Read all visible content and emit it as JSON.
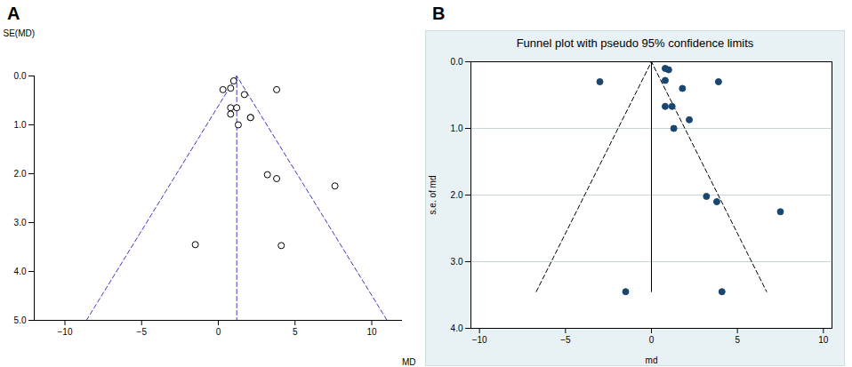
{
  "chart_data": [
    {
      "type": "scatter",
      "panel": "A",
      "x_label": "MD",
      "y_label": "SE(MD)",
      "xlim": [
        -12,
        12
      ],
      "xticks": [
        -10,
        -5,
        0,
        5,
        10
      ],
      "ylim": [
        0,
        5
      ],
      "yticks": [
        0,
        1,
        2,
        3,
        4,
        5
      ],
      "marker": "open circle",
      "color": "#000000",
      "x": [
        1.0,
        0.3,
        0.8,
        1.7,
        3.8,
        0.8,
        1.2,
        0.8,
        2.1,
        2.1,
        1.3,
        3.2,
        3.8,
        7.6,
        -1.5,
        4.1
      ],
      "y": [
        0.1,
        0.28,
        0.25,
        0.38,
        0.28,
        0.65,
        0.65,
        0.78,
        0.85,
        0.85,
        1.0,
        2.02,
        2.1,
        2.25,
        3.45,
        3.47
      ],
      "lines": [
        {
          "x": [
            -8.6,
            1.2,
            11
          ],
          "y": [
            5,
            0,
            5
          ],
          "color": "#3b3bc8",
          "line_style": "dashed"
        },
        {
          "x": [
            1.2,
            1.2
          ],
          "y": [
            0,
            5
          ],
          "color": "#3b3bc8",
          "line_style": "dashed"
        }
      ]
    },
    {
      "type": "scatter",
      "panel": "B",
      "title": "Funnel plot with pseudo 95% confidence limits",
      "x_label": "md",
      "y_label": "s.e. of md",
      "xlim": [
        -10.5,
        10.5
      ],
      "xticks": [
        -10,
        -5,
        0,
        5,
        10
      ],
      "ylim": [
        0,
        4
      ],
      "yticks": [
        0,
        1,
        2,
        3,
        4
      ],
      "grid": true,
      "marker": "filled circle",
      "color": "#1a476f",
      "x": [
        -3.0,
        0.8,
        1.0,
        0.8,
        1.8,
        3.9,
        0.8,
        1.2,
        2.2,
        1.3,
        3.2,
        3.8,
        7.5,
        -1.5,
        4.1
      ],
      "y": [
        0.3,
        0.1,
        0.12,
        0.28,
        0.4,
        0.3,
        0.67,
        0.67,
        0.87,
        1.0,
        2.02,
        2.1,
        2.25,
        3.45,
        3.45
      ],
      "lines": [
        {
          "x": [
            -6.7,
            0,
            6.7
          ],
          "y": [
            3.45,
            0,
            3.45
          ],
          "color": "#000000",
          "line_style": "dashed"
        },
        {
          "x": [
            0,
            0
          ],
          "y": [
            0,
            3.45
          ],
          "color": "#000000",
          "line_style": "solid"
        }
      ]
    }
  ]
}
